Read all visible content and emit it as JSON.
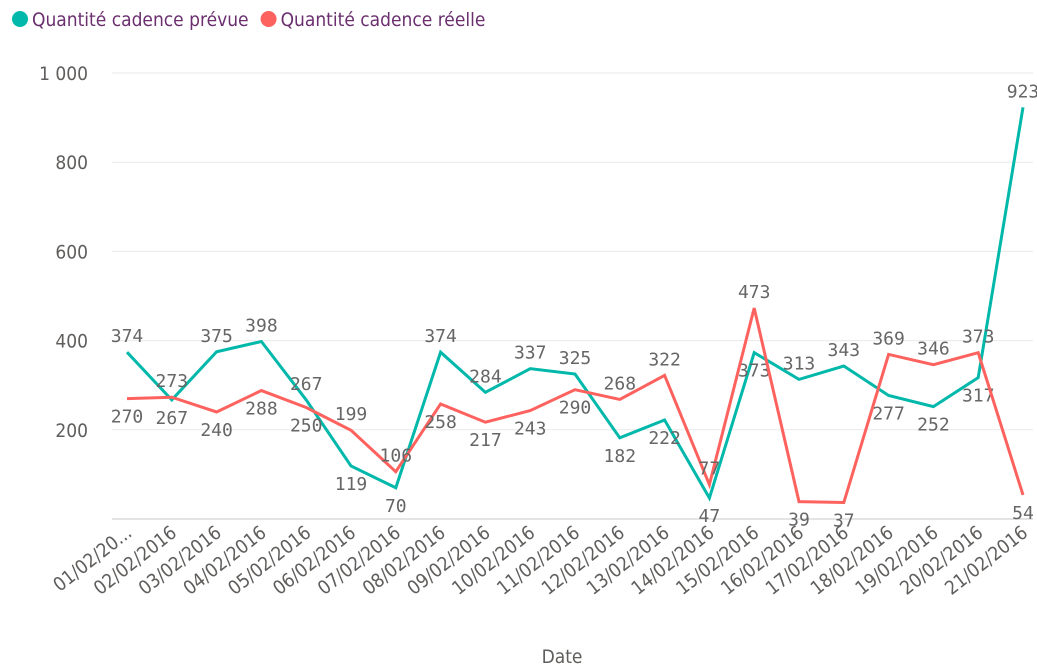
{
  "chart_data": {
    "type": "line",
    "x_label": "Date",
    "categories": [
      "01/02/20...",
      "02/02/2016",
      "03/02/2016",
      "04/02/2016",
      "05/02/2016",
      "06/02/2016",
      "07/02/2016",
      "08/02/2016",
      "09/02/2016",
      "10/02/2016",
      "11/02/2016",
      "12/02/2016",
      "13/02/2016",
      "14/02/2016",
      "15/02/2016",
      "16/02/2016",
      "17/02/2016",
      "18/02/2016",
      "19/02/2016",
      "20/02/2016",
      "21/02/2016"
    ],
    "series": [
      {
        "name": "Quantité cadence prévue",
        "color": "#01b8aa",
        "values": [
          374,
          267,
          375,
          398,
          267,
          119,
          70,
          374,
          284,
          337,
          325,
          182,
          222,
          47,
          373,
          313,
          343,
          277,
          252,
          317,
          923
        ]
      },
      {
        "name": "Quantité cadence réelle",
        "color": "#fd625e",
        "values": [
          270,
          273,
          240,
          288,
          250,
          199,
          106,
          258,
          217,
          243,
          290,
          268,
          322,
          77,
          473,
          39,
          37,
          369,
          346,
          373,
          54
        ]
      }
    ],
    "ylim": [
      0,
      1000
    ],
    "yticks": [
      {
        "value": 1000,
        "label": "1 000"
      },
      800,
      600,
      400,
      200
    ],
    "grid": true
  }
}
